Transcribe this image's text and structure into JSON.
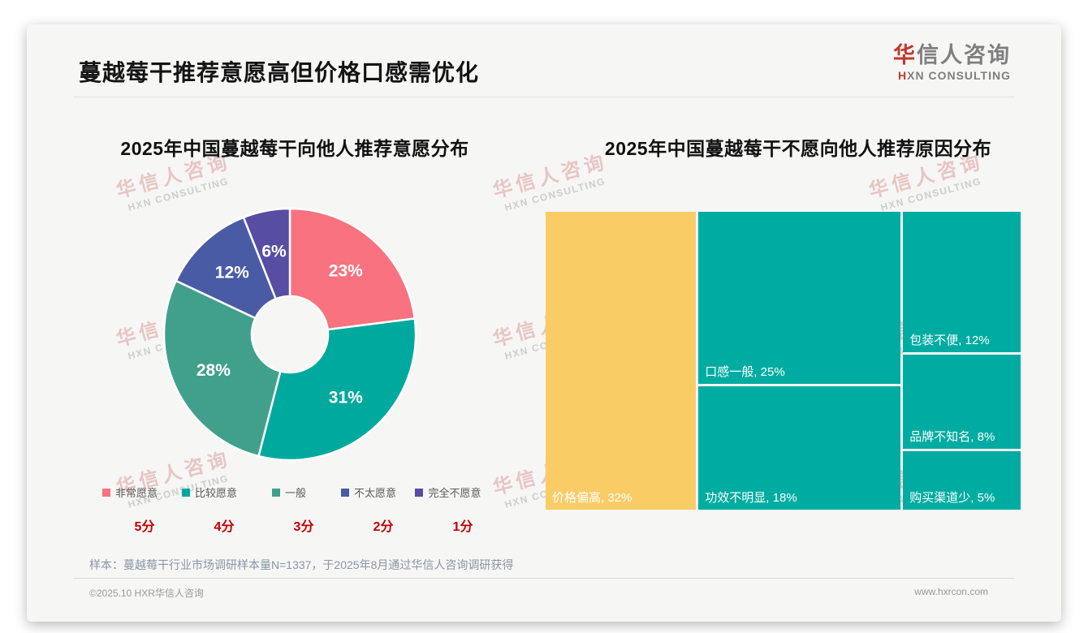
{
  "page": {
    "title": "蔓越莓干推荐意愿高但价格口感需优化",
    "logo": {
      "cn_first": "华",
      "cn_rest": "信人咨询",
      "en_first": "H",
      "en_rest": "XN CONSULTING"
    },
    "watermark": {
      "line1": "华信人咨询",
      "line2": "HXN CONSULTING"
    },
    "footnote": "样本：蔓越莓干行业市场调研样本量N=1337，于2025年8月通过华信人咨询调研获得",
    "footer_left": "©2025.10 HXR华信人咨询",
    "footer_right": "www.hxrcon.com",
    "accent_red": "#C00000"
  },
  "chart_data": [
    {
      "type": "pie",
      "subtype": "donut",
      "title": "2025年中国蔓越莓干向他人推荐意愿分布",
      "categories": [
        "非常愿意",
        "比较愿意",
        "一般",
        "不太愿意",
        "完全不愿意"
      ],
      "values": [
        23,
        31,
        28,
        12,
        6
      ],
      "unit": "%",
      "scores": [
        "5分",
        "4分",
        "3分",
        "2分",
        "1分"
      ],
      "colors": [
        "#F8737F",
        "#00A99E",
        "#41A08B",
        "#4A5BA6",
        "#574DA3"
      ],
      "start_angle_deg": 0,
      "direction": "clockwise",
      "legend_position": "bottom"
    },
    {
      "type": "treemap",
      "title": "2025年中国蔓越莓干不愿向他人推荐原因分布",
      "unit": "%",
      "label_format": "{label}, {value}%",
      "columns": [
        {
          "blocks": [
            {
              "label": "价格偏高",
              "value": 32,
              "color": "#FACC66"
            }
          ]
        },
        {
          "blocks": [
            {
              "label": "口感一般",
              "value": 25,
              "color": "#00ACA1"
            },
            {
              "label": "功效不明显",
              "value": 18,
              "color": "#00ACA1"
            }
          ]
        },
        {
          "blocks": [
            {
              "label": "包装不便",
              "value": 12,
              "color": "#00ACA1"
            },
            {
              "label": "品牌不知名",
              "value": 8,
              "color": "#00ACA1"
            },
            {
              "label": "购买渠道少",
              "value": 5,
              "color": "#00ACA1"
            }
          ]
        }
      ]
    }
  ]
}
